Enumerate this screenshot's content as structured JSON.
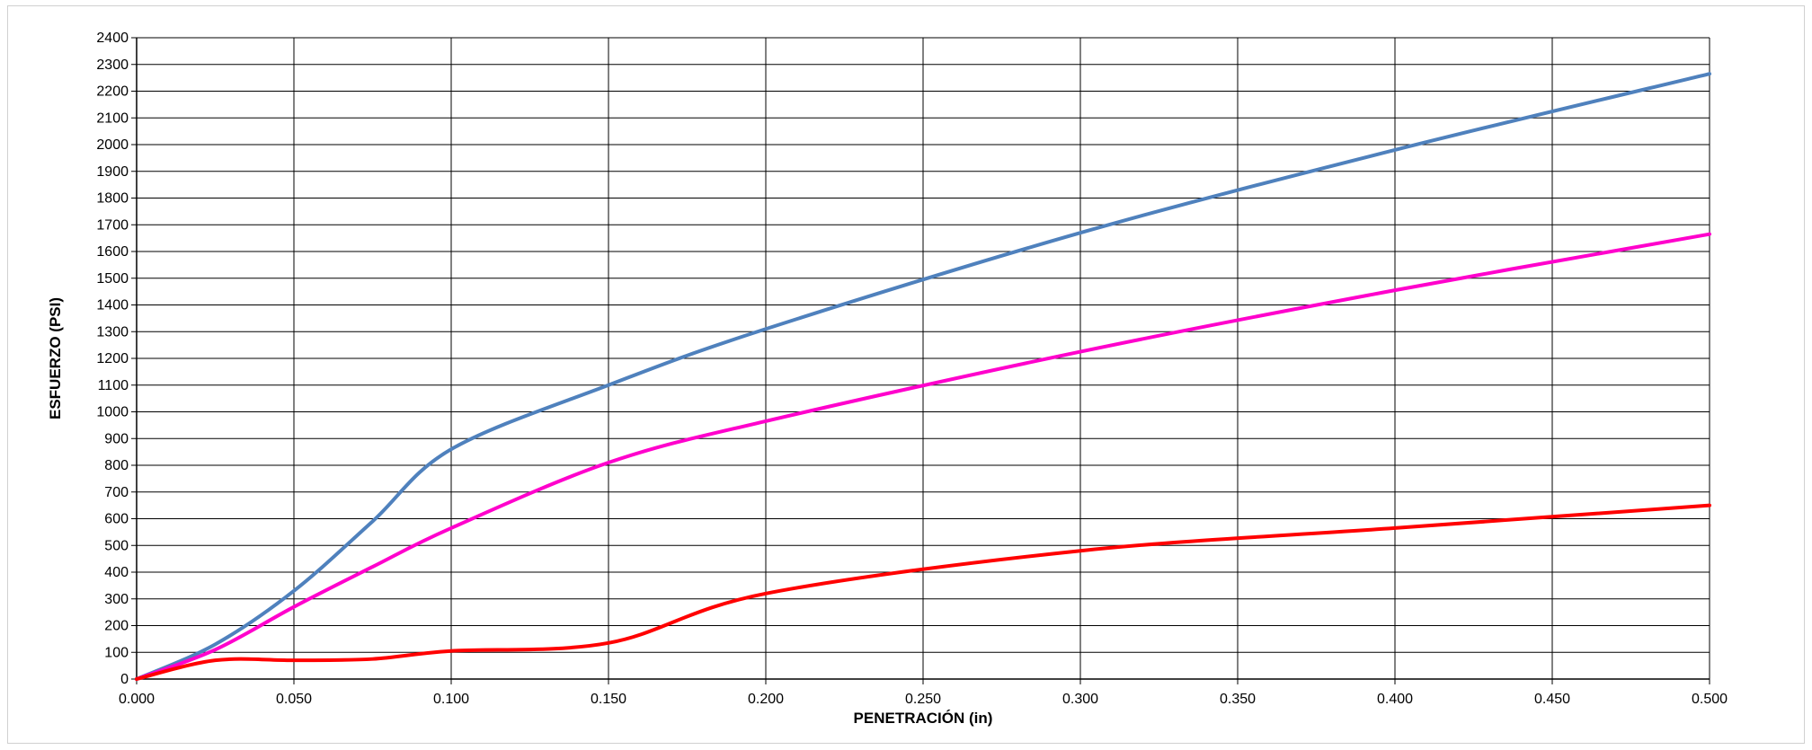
{
  "chart_data": {
    "type": "line",
    "title": "",
    "xlabel": "PENETRACIÓN (in)",
    "ylabel": "ESFUERZO (PSI)",
    "xlim": [
      0,
      0.5
    ],
    "ylim": [
      0,
      2400
    ],
    "x_ticks": [
      "0.000",
      "0.050",
      "0.100",
      "0.150",
      "0.200",
      "0.250",
      "0.300",
      "0.350",
      "0.400",
      "0.450",
      "0.500"
    ],
    "y_ticks": [
      "0",
      "100",
      "200",
      "300",
      "400",
      "500",
      "600",
      "700",
      "800",
      "900",
      "1000",
      "1100",
      "1200",
      "1300",
      "1400",
      "1500",
      "1600",
      "1700",
      "1800",
      "1900",
      "2000",
      "2100",
      "2200",
      "2300",
      "2400"
    ],
    "grid": true,
    "legend": "none",
    "series": [
      {
        "color": "#4f81bd",
        "x": [
          0,
          0.025,
          0.05,
          0.075,
          0.1,
          0.15,
          0.2,
          0.3,
          0.4,
          0.5
        ],
        "y": [
          0,
          130,
          330,
          590,
          860,
          1100,
          1310,
          1670,
          1980,
          2265
        ]
      },
      {
        "color": "#ff00cc",
        "x": [
          0,
          0.025,
          0.05,
          0.075,
          0.1,
          0.15,
          0.2,
          0.3,
          0.4,
          0.5
        ],
        "y": [
          0,
          110,
          270,
          420,
          565,
          810,
          965,
          1225,
          1455,
          1665
        ]
      },
      {
        "color": "#ff0000",
        "x": [
          0,
          0.025,
          0.05,
          0.075,
          0.1,
          0.15,
          0.2,
          0.3,
          0.4,
          0.5
        ],
        "y": [
          0,
          70,
          70,
          75,
          105,
          135,
          320,
          480,
          565,
          650
        ]
      }
    ]
  }
}
